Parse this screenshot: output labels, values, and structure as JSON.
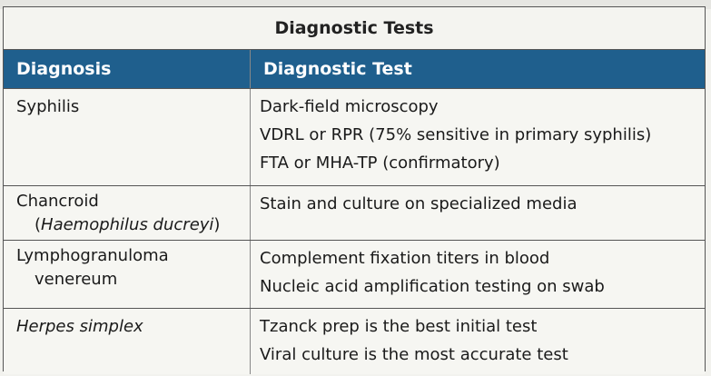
{
  "table": {
    "title": "Diagnostic Tests",
    "headers": {
      "diagnosis": "Diagnosis",
      "test": "Diagnostic Test"
    },
    "rows": [
      {
        "diagnosis": "Syphilis",
        "diagnosis_sub": "",
        "tests": [
          "Dark-field microscopy",
          "VDRL or RPR (75% sensitive in primary syphilis)",
          "FTA or MHA-TP (confirmatory)"
        ]
      },
      {
        "diagnosis": "Chancroid",
        "diagnosis_sub": "(Haemophilus ducreyi)",
        "diagnosis_sub_prefix": "(",
        "diagnosis_sub_italic": "Haemophilus ducreyi",
        "diagnosis_sub_suffix": ")",
        "tests": [
          "Stain and culture on specialized media"
        ]
      },
      {
        "diagnosis": "Lymphogranuloma",
        "diagnosis_sub": "venereum",
        "tests": [
          "Complement fixation titers in blood",
          "Nucleic acid amplification testing on swab"
        ]
      },
      {
        "diagnosis": "Herpes simplex",
        "diagnosis_sub": "",
        "tests": [
          "Tzanck prep is the best initial test",
          "Viral culture is the most accurate test"
        ]
      }
    ]
  },
  "colors": {
    "header_bg": "#1f5f8d",
    "header_text": "#ffffff",
    "border": "#555555",
    "background": "#f6f6f2"
  }
}
